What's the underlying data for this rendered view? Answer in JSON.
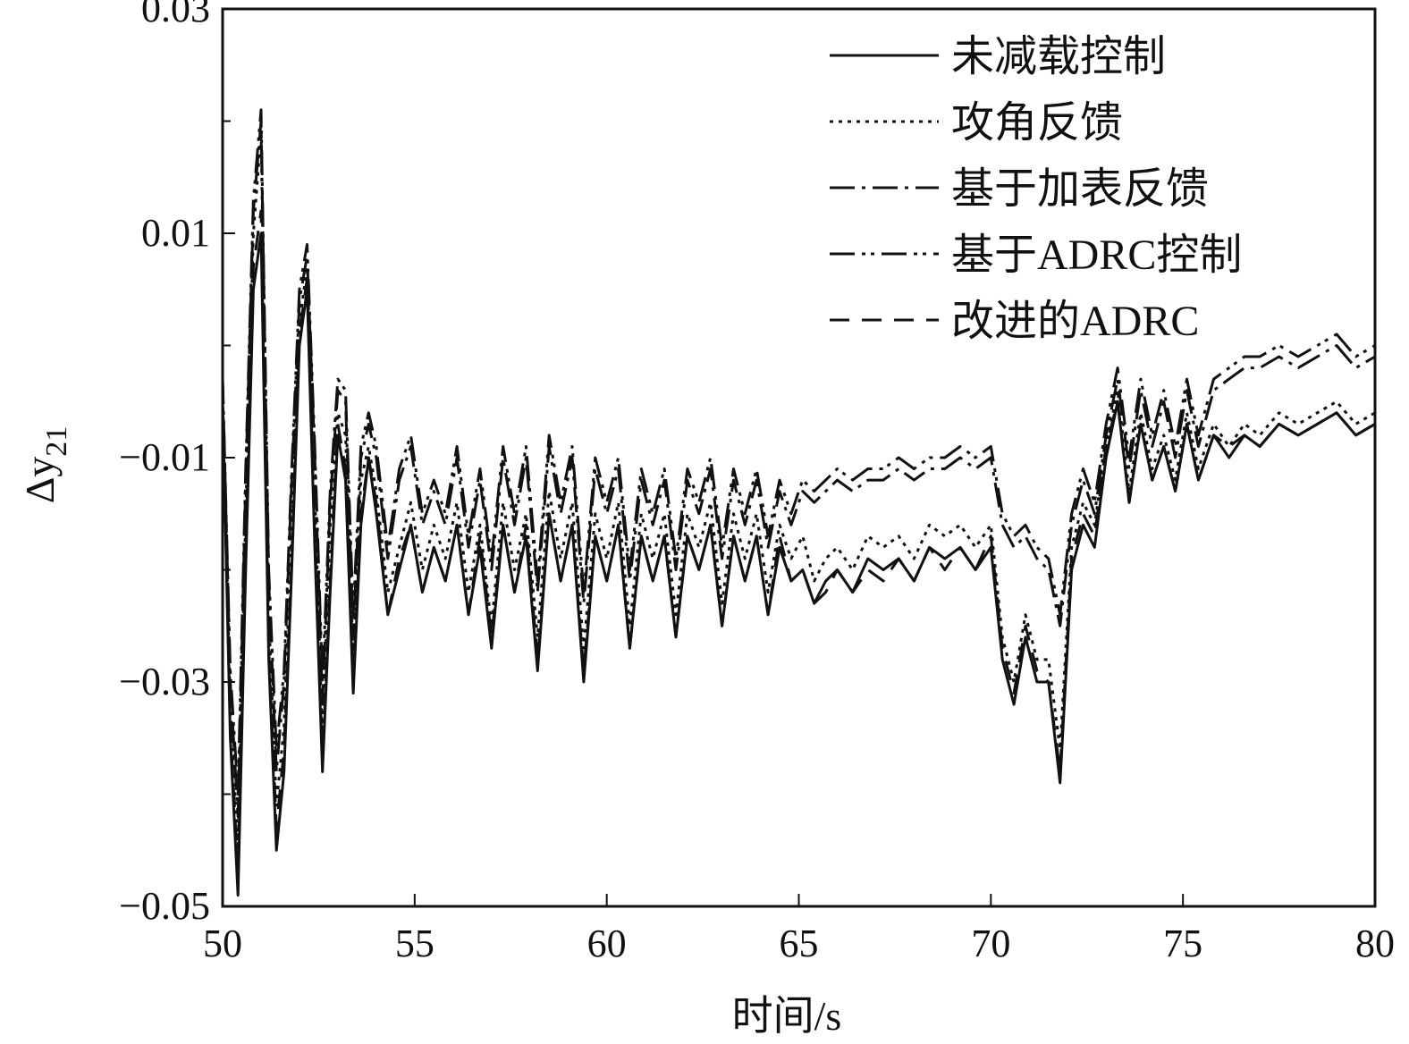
{
  "chart_data": {
    "type": "line",
    "xlabel": "时间/s",
    "ylabel": "Δy",
    "ylabel_subscript": "21",
    "xlim": [
      50,
      80
    ],
    "ylim": [
      -0.05,
      0.03
    ],
    "x_ticks": [
      50,
      55,
      60,
      65,
      70,
      75,
      80
    ],
    "x_tick_labels": [
      "50",
      "55",
      "60",
      "65",
      "70",
      "75",
      "80"
    ],
    "y_ticks": [
      -0.05,
      -0.03,
      -0.01,
      0.01,
      0.03
    ],
    "y_tick_labels": [
      "−0.05",
      "−0.03",
      "−0.01",
      "0.01",
      "0.03"
    ],
    "y_minor_ticks": [
      -0.04,
      -0.02,
      0.0,
      0.02
    ],
    "grid": false,
    "legend_position": "top-right",
    "series": [
      {
        "name": "未减载控制",
        "dash": "solid",
        "x": [
          50.0,
          50.2,
          50.4,
          50.6,
          50.8,
          51.0,
          51.2,
          51.4,
          51.6,
          51.8,
          52.0,
          52.2,
          52.4,
          52.6,
          52.8,
          53.0,
          53.2,
          53.4,
          53.6,
          53.8,
          54.0,
          54.3,
          54.6,
          54.9,
          55.2,
          55.5,
          55.8,
          56.1,
          56.4,
          56.7,
          57.0,
          57.3,
          57.6,
          57.9,
          58.2,
          58.5,
          58.8,
          59.1,
          59.4,
          59.7,
          60.0,
          60.3,
          60.6,
          60.9,
          61.2,
          61.5,
          61.8,
          62.1,
          62.4,
          62.7,
          63.0,
          63.3,
          63.6,
          63.9,
          64.2,
          64.5,
          64.8,
          65.1,
          65.4,
          65.7,
          66.0,
          66.4,
          66.8,
          67.2,
          67.6,
          68.0,
          68.4,
          68.8,
          69.2,
          69.6,
          70.0,
          70.3,
          70.6,
          70.9,
          71.2,
          71.5,
          71.8,
          72.1,
          72.4,
          72.7,
          73.0,
          73.3,
          73.6,
          73.9,
          74.2,
          74.5,
          74.8,
          75.1,
          75.4,
          75.8,
          76.2,
          76.6,
          77.0,
          77.5,
          78.0,
          78.5,
          79.0,
          79.5,
          80.0
        ],
        "values": [
          -0.005,
          -0.035,
          -0.049,
          -0.02,
          0.005,
          0.01,
          -0.028,
          -0.045,
          -0.038,
          -0.02,
          0.0,
          0.005,
          -0.018,
          -0.038,
          -0.022,
          -0.008,
          -0.012,
          -0.031,
          -0.016,
          -0.01,
          -0.015,
          -0.024,
          -0.02,
          -0.016,
          -0.022,
          -0.018,
          -0.021,
          -0.016,
          -0.024,
          -0.018,
          -0.027,
          -0.016,
          -0.022,
          -0.017,
          -0.029,
          -0.015,
          -0.021,
          -0.016,
          -0.03,
          -0.017,
          -0.021,
          -0.016,
          -0.027,
          -0.017,
          -0.021,
          -0.017,
          -0.026,
          -0.017,
          -0.02,
          -0.016,
          -0.025,
          -0.017,
          -0.021,
          -0.017,
          -0.024,
          -0.018,
          -0.021,
          -0.02,
          -0.023,
          -0.021,
          -0.02,
          -0.022,
          -0.019,
          -0.02,
          -0.019,
          -0.021,
          -0.018,
          -0.019,
          -0.018,
          -0.02,
          -0.018,
          -0.028,
          -0.032,
          -0.026,
          -0.03,
          -0.03,
          -0.039,
          -0.02,
          -0.016,
          -0.018,
          -0.01,
          -0.005,
          -0.014,
          -0.007,
          -0.012,
          -0.009,
          -0.013,
          -0.007,
          -0.012,
          -0.008,
          -0.01,
          -0.008,
          -0.009,
          -0.007,
          -0.008,
          -0.007,
          -0.006,
          -0.008,
          -0.007
        ]
      },
      {
        "name": "攻角反馈",
        "dash": "dot",
        "x": [
          50.0,
          50.2,
          50.4,
          50.6,
          50.8,
          51.0,
          51.2,
          51.4,
          51.6,
          51.8,
          52.0,
          52.2,
          52.4,
          52.6,
          52.8,
          53.0,
          53.2,
          53.4,
          53.6,
          53.8,
          54.0,
          54.3,
          54.6,
          54.9,
          55.2,
          55.5,
          55.8,
          56.1,
          56.4,
          56.7,
          57.0,
          57.3,
          57.6,
          57.9,
          58.2,
          58.5,
          58.8,
          59.1,
          59.4,
          59.7,
          60.0,
          60.3,
          60.6,
          60.9,
          61.2,
          61.5,
          61.8,
          62.1,
          62.4,
          62.7,
          63.0,
          63.3,
          63.6,
          63.9,
          64.2,
          64.5,
          64.8,
          65.1,
          65.4,
          65.7,
          66.0,
          66.4,
          66.8,
          67.2,
          67.6,
          68.0,
          68.4,
          68.8,
          69.2,
          69.6,
          70.0,
          70.3,
          70.6,
          70.9,
          71.2,
          71.5,
          71.8,
          72.1,
          72.4,
          72.7,
          73.0,
          73.3,
          73.6,
          73.9,
          74.2,
          74.5,
          74.8,
          75.1,
          75.4,
          75.8,
          76.2,
          76.6,
          77.0,
          77.5,
          78.0,
          78.5,
          79.0,
          79.5,
          80.0
        ],
        "values": [
          -0.004,
          -0.032,
          -0.045,
          -0.015,
          0.01,
          0.019,
          -0.024,
          -0.041,
          -0.034,
          -0.016,
          0.002,
          0.007,
          -0.013,
          -0.035,
          -0.016,
          -0.006,
          -0.008,
          -0.028,
          -0.012,
          -0.009,
          -0.013,
          -0.022,
          -0.018,
          -0.014,
          -0.02,
          -0.016,
          -0.019,
          -0.014,
          -0.022,
          -0.016,
          -0.025,
          -0.014,
          -0.02,
          -0.015,
          -0.026,
          -0.013,
          -0.019,
          -0.014,
          -0.027,
          -0.015,
          -0.019,
          -0.014,
          -0.025,
          -0.015,
          -0.019,
          -0.015,
          -0.024,
          -0.015,
          -0.018,
          -0.014,
          -0.023,
          -0.015,
          -0.019,
          -0.015,
          -0.022,
          -0.016,
          -0.019,
          -0.017,
          -0.021,
          -0.019,
          -0.018,
          -0.02,
          -0.017,
          -0.018,
          -0.017,
          -0.019,
          -0.016,
          -0.017,
          -0.016,
          -0.018,
          -0.016,
          -0.026,
          -0.03,
          -0.024,
          -0.028,
          -0.028,
          -0.036,
          -0.018,
          -0.014,
          -0.016,
          -0.009,
          -0.004,
          -0.013,
          -0.006,
          -0.011,
          -0.008,
          -0.012,
          -0.006,
          -0.011,
          -0.007,
          -0.009,
          -0.007,
          -0.008,
          -0.006,
          -0.007,
          -0.006,
          -0.005,
          -0.007,
          -0.006
        ]
      },
      {
        "name": "基于加表反馈",
        "dash": "dash-dot",
        "x": [
          50.0,
          50.2,
          50.4,
          50.6,
          50.8,
          51.0,
          51.2,
          51.4,
          51.6,
          51.8,
          52.0,
          52.2,
          52.4,
          52.6,
          52.8,
          53.0,
          53.2,
          53.4,
          53.6,
          53.8,
          54.0,
          54.3,
          54.6,
          54.9,
          55.2,
          55.5,
          55.8,
          56.1,
          56.4,
          56.7,
          57.0,
          57.3,
          57.6,
          57.9,
          58.2,
          58.5,
          58.8,
          59.1,
          59.4,
          59.7,
          60.0,
          60.3,
          60.6,
          60.9,
          61.2,
          61.5,
          61.8,
          62.1,
          62.4,
          62.7,
          63.0,
          63.3,
          63.6,
          63.9,
          64.2,
          64.5,
          64.8,
          65.1,
          65.4,
          65.7,
          66.0,
          66.4,
          66.8,
          67.2,
          67.6,
          68.0,
          68.4,
          68.8,
          69.2,
          69.6,
          70.0,
          70.3,
          70.6,
          70.9,
          71.2,
          71.5,
          71.8,
          72.1,
          72.4,
          72.7,
          73.0,
          73.3,
          73.6,
          73.9,
          74.2,
          74.5,
          74.8,
          75.1,
          75.4,
          75.8,
          76.2,
          76.6,
          77.0,
          77.5,
          78.0,
          78.5,
          79.0,
          79.5,
          80.0
        ],
        "values": [
          -0.003,
          -0.03,
          -0.042,
          -0.012,
          0.012,
          0.02,
          -0.021,
          -0.038,
          -0.03,
          -0.012,
          0.004,
          0.008,
          -0.01,
          -0.032,
          -0.014,
          -0.004,
          -0.005,
          -0.026,
          -0.01,
          -0.007,
          -0.01,
          -0.019,
          -0.012,
          -0.009,
          -0.016,
          -0.013,
          -0.016,
          -0.01,
          -0.018,
          -0.012,
          -0.02,
          -0.01,
          -0.016,
          -0.01,
          -0.022,
          -0.009,
          -0.015,
          -0.01,
          -0.023,
          -0.011,
          -0.015,
          -0.011,
          -0.021,
          -0.012,
          -0.016,
          -0.012,
          -0.02,
          -0.012,
          -0.015,
          -0.011,
          -0.019,
          -0.012,
          -0.016,
          -0.012,
          -0.018,
          -0.013,
          -0.016,
          -0.013,
          -0.014,
          -0.013,
          -0.012,
          -0.013,
          -0.012,
          -0.012,
          -0.011,
          -0.012,
          -0.011,
          -0.011,
          -0.01,
          -0.011,
          -0.01,
          -0.016,
          -0.018,
          -0.017,
          -0.019,
          -0.02,
          -0.025,
          -0.016,
          -0.012,
          -0.015,
          -0.008,
          -0.003,
          -0.011,
          -0.004,
          -0.009,
          -0.005,
          -0.01,
          -0.004,
          -0.009,
          -0.004,
          -0.003,
          -0.002,
          -0.002,
          -0.001,
          -0.002,
          -0.001,
          0.0,
          -0.002,
          -0.001
        ]
      },
      {
        "name": "基于ADRC控制",
        "dash": "dash-dot-dot",
        "x": [
          50.0,
          50.2,
          50.4,
          50.6,
          50.8,
          51.0,
          51.2,
          51.4,
          51.6,
          51.8,
          52.0,
          52.2,
          52.4,
          52.6,
          52.8,
          53.0,
          53.2,
          53.4,
          53.6,
          53.8,
          54.0,
          54.3,
          54.6,
          54.9,
          55.2,
          55.5,
          55.8,
          56.1,
          56.4,
          56.7,
          57.0,
          57.3,
          57.6,
          57.9,
          58.2,
          58.5,
          58.8,
          59.1,
          59.4,
          59.7,
          60.0,
          60.3,
          60.6,
          60.9,
          61.2,
          61.5,
          61.8,
          62.1,
          62.4,
          62.7,
          63.0,
          63.3,
          63.6,
          63.9,
          64.2,
          64.5,
          64.8,
          65.1,
          65.4,
          65.7,
          66.0,
          66.4,
          66.8,
          67.2,
          67.6,
          68.0,
          68.4,
          68.8,
          69.2,
          69.6,
          70.0,
          70.3,
          70.6,
          70.9,
          71.2,
          71.5,
          71.8,
          72.1,
          72.4,
          72.7,
          73.0,
          73.3,
          73.6,
          73.9,
          74.2,
          74.5,
          74.8,
          75.1,
          75.4,
          75.8,
          76.2,
          76.6,
          77.0,
          77.5,
          78.0,
          78.5,
          79.0,
          79.5,
          80.0
        ],
        "values": [
          -0.003,
          -0.029,
          -0.04,
          -0.011,
          0.013,
          0.021,
          -0.02,
          -0.036,
          -0.029,
          -0.011,
          0.005,
          0.009,
          -0.009,
          -0.03,
          -0.013,
          -0.003,
          -0.004,
          -0.024,
          -0.009,
          -0.006,
          -0.009,
          -0.018,
          -0.011,
          -0.008,
          -0.015,
          -0.012,
          -0.015,
          -0.009,
          -0.017,
          -0.011,
          -0.019,
          -0.009,
          -0.015,
          -0.009,
          -0.021,
          -0.008,
          -0.014,
          -0.009,
          -0.022,
          -0.01,
          -0.014,
          -0.01,
          -0.02,
          -0.011,
          -0.015,
          -0.011,
          -0.019,
          -0.011,
          -0.014,
          -0.01,
          -0.018,
          -0.011,
          -0.015,
          -0.011,
          -0.017,
          -0.012,
          -0.015,
          -0.012,
          -0.013,
          -0.012,
          -0.011,
          -0.012,
          -0.011,
          -0.011,
          -0.01,
          -0.011,
          -0.01,
          -0.01,
          -0.009,
          -0.01,
          -0.009,
          -0.015,
          -0.017,
          -0.016,
          -0.018,
          -0.019,
          -0.024,
          -0.015,
          -0.011,
          -0.014,
          -0.007,
          -0.002,
          -0.01,
          -0.003,
          -0.008,
          -0.004,
          -0.009,
          -0.003,
          -0.008,
          -0.003,
          -0.002,
          -0.001,
          -0.001,
          0.0,
          -0.001,
          0.0,
          0.001,
          -0.001,
          0.0
        ]
      },
      {
        "name": "改进的ADRC",
        "dash": "dash",
        "x": [
          50.0,
          50.2,
          50.4,
          50.6,
          50.8,
          51.0,
          51.2,
          51.4,
          51.6,
          51.8,
          52.0,
          52.2,
          52.4,
          52.6,
          52.8,
          53.0,
          53.2,
          53.4,
          53.6,
          53.8,
          54.0,
          54.3,
          54.6,
          54.9,
          55.2,
          55.5,
          55.8,
          56.1,
          56.4,
          56.7,
          57.0,
          57.3,
          57.6,
          57.9,
          58.2,
          58.5,
          58.8,
          59.1,
          59.4,
          59.7,
          60.0,
          60.3,
          60.6,
          60.9,
          61.2,
          61.5,
          61.8,
          62.1,
          62.4,
          62.7,
          63.0,
          63.3,
          63.6,
          63.9,
          64.2,
          64.5,
          64.8,
          65.1,
          65.4,
          65.7,
          66.0,
          66.4,
          66.8,
          67.2,
          67.6,
          68.0,
          68.4,
          68.8,
          69.2,
          69.6,
          70.0,
          70.3,
          70.6,
          70.9,
          71.2,
          71.5,
          71.8,
          72.1,
          72.4,
          72.7,
          73.0,
          73.3,
          73.6,
          73.9,
          74.2,
          74.5,
          74.8,
          75.1,
          75.4,
          75.8,
          76.2,
          76.6,
          77.0,
          77.5,
          78.0,
          78.5,
          79.0,
          79.5,
          80.0
        ],
        "values": [
          -0.005,
          -0.034,
          -0.047,
          -0.018,
          0.007,
          0.012,
          -0.027,
          -0.043,
          -0.036,
          -0.019,
          0.001,
          0.006,
          -0.017,
          -0.037,
          -0.021,
          -0.007,
          -0.011,
          -0.03,
          -0.015,
          -0.01,
          -0.014,
          -0.024,
          -0.019,
          -0.016,
          -0.022,
          -0.018,
          -0.021,
          -0.016,
          -0.024,
          -0.017,
          -0.026,
          -0.016,
          -0.022,
          -0.016,
          -0.028,
          -0.015,
          -0.021,
          -0.016,
          -0.029,
          -0.017,
          -0.021,
          -0.016,
          -0.027,
          -0.017,
          -0.021,
          -0.017,
          -0.026,
          -0.017,
          -0.02,
          -0.016,
          -0.025,
          -0.017,
          -0.021,
          -0.017,
          -0.024,
          -0.017,
          -0.021,
          -0.02,
          -0.023,
          -0.022,
          -0.02,
          -0.022,
          -0.02,
          -0.021,
          -0.019,
          -0.021,
          -0.018,
          -0.02,
          -0.018,
          -0.02,
          -0.017,
          -0.027,
          -0.031,
          -0.025,
          -0.029,
          -0.03,
          -0.038,
          -0.019,
          -0.015,
          -0.017,
          -0.009,
          -0.005,
          -0.014,
          -0.007,
          -0.012,
          -0.009,
          -0.013,
          -0.007,
          -0.012,
          -0.008,
          -0.009,
          -0.008,
          -0.009,
          -0.007,
          -0.008,
          -0.007,
          -0.006,
          -0.008,
          -0.007
        ]
      }
    ]
  }
}
